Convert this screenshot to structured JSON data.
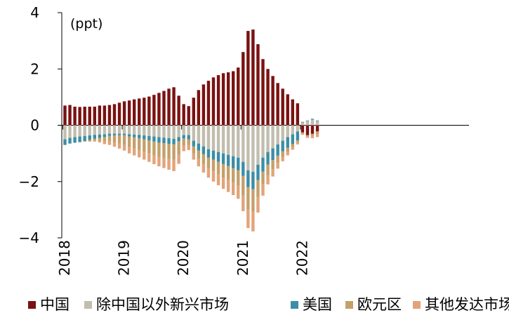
{
  "chart_data": {
    "type": "bar",
    "stacked": true,
    "unit_label": "(ppt)",
    "ylim": [
      -4,
      4
    ],
    "y_ticks": [
      4,
      2,
      0,
      -2,
      -4
    ],
    "y_tick_labels": [
      "4",
      "2",
      "0",
      "−2",
      "−4"
    ],
    "x_year_ticks": [
      {
        "label": "2018",
        "index": 0
      },
      {
        "label": "2019",
        "index": 12
      },
      {
        "label": "2020",
        "index": 24
      },
      {
        "label": "2021",
        "index": 36
      },
      {
        "label": "2022",
        "index": 48
      }
    ],
    "months": 52,
    "series": [
      {
        "name": "中国",
        "color": "#7a1212",
        "values": [
          0.7,
          0.72,
          0.66,
          0.65,
          0.66,
          0.66,
          0.66,
          0.7,
          0.7,
          0.72,
          0.75,
          0.8,
          0.85,
          0.88,
          0.92,
          0.95,
          0.98,
          1.02,
          1.08,
          1.15,
          1.22,
          1.3,
          1.35,
          1.05,
          0.75,
          0.68,
          0.98,
          1.25,
          1.45,
          1.58,
          1.7,
          1.78,
          1.85,
          1.88,
          1.92,
          2.05,
          2.6,
          3.35,
          3.4,
          2.88,
          2.35,
          2.0,
          1.75,
          1.5,
          1.3,
          1.1,
          0.92,
          0.78,
          -0.25,
          -0.35,
          -0.3,
          -0.22
        ]
      },
      {
        "name": "除中国以外新兴市场",
        "color": "#c1beb0",
        "values": [
          -0.5,
          -0.45,
          -0.42,
          -0.4,
          -0.38,
          -0.36,
          -0.34,
          -0.33,
          -0.32,
          -0.3,
          -0.3,
          -0.3,
          -0.3,
          -0.32,
          -0.33,
          -0.34,
          -0.36,
          -0.38,
          -0.4,
          -0.42,
          -0.44,
          -0.46,
          -0.48,
          -0.42,
          -0.35,
          -0.35,
          -0.55,
          -0.65,
          -0.75,
          -0.85,
          -0.9,
          -0.95,
          -1.0,
          -1.05,
          -1.1,
          -1.15,
          -1.3,
          -1.6,
          -1.65,
          -1.4,
          -1.15,
          -0.95,
          -0.82,
          -0.68,
          -0.55,
          -0.42,
          -0.32,
          -0.22,
          0.1,
          0.15,
          0.2,
          0.15
        ]
      },
      {
        "name": "美国",
        "color": "#3b8ea5",
        "values": [
          -0.2,
          -0.2,
          -0.2,
          -0.2,
          -0.18,
          -0.16,
          -0.14,
          -0.12,
          -0.1,
          -0.08,
          -0.06,
          -0.05,
          -0.05,
          -0.08,
          -0.1,
          -0.12,
          -0.14,
          -0.16,
          -0.18,
          -0.2,
          -0.2,
          -0.2,
          -0.2,
          -0.15,
          -0.12,
          -0.15,
          -0.2,
          -0.25,
          -0.28,
          -0.3,
          -0.32,
          -0.35,
          -0.38,
          -0.4,
          -0.42,
          -0.45,
          -0.5,
          -0.6,
          -0.62,
          -0.55,
          -0.5,
          -0.45,
          -0.42,
          -0.4,
          -0.38,
          -0.38,
          -0.35,
          -0.32,
          0.02,
          0.02,
          0.03,
          0.02
        ]
      },
      {
        "name": "欧元区",
        "color": "#c4a06a",
        "values": [
          0,
          0,
          0,
          0,
          -0.02,
          -0.04,
          -0.06,
          -0.1,
          -0.15,
          -0.2,
          -0.25,
          -0.3,
          -0.35,
          -0.38,
          -0.4,
          -0.42,
          -0.44,
          -0.46,
          -0.48,
          -0.5,
          -0.52,
          -0.54,
          -0.55,
          -0.48,
          -0.25,
          -0.2,
          -0.25,
          -0.3,
          -0.35,
          -0.38,
          -0.42,
          -0.45,
          -0.48,
          -0.5,
          -0.52,
          -0.55,
          -0.7,
          -0.8,
          -0.8,
          -0.6,
          -0.45,
          -0.38,
          -0.32,
          -0.26,
          -0.2,
          -0.15,
          -0.1,
          -0.06,
          -0.05,
          -0.05,
          -0.08,
          -0.1
        ]
      },
      {
        "name": "其他发达市场",
        "color": "#e3a37a",
        "values": [
          0,
          0,
          0,
          0,
          0,
          -0.02,
          -0.04,
          -0.06,
          -0.1,
          -0.12,
          -0.15,
          -0.18,
          -0.2,
          -0.22,
          -0.24,
          -0.26,
          -0.28,
          -0.3,
          -0.32,
          -0.34,
          -0.36,
          -0.38,
          -0.4,
          -0.32,
          -0.2,
          -0.18,
          -0.22,
          -0.26,
          -0.3,
          -0.33,
          -0.36,
          -0.38,
          -0.4,
          -0.42,
          -0.44,
          -0.46,
          -0.55,
          -0.65,
          -0.7,
          -0.55,
          -0.4,
          -0.32,
          -0.26,
          -0.2,
          -0.15,
          -0.12,
          -0.1,
          -0.08,
          -0.04,
          -0.05,
          -0.08,
          -0.1
        ]
      }
    ]
  }
}
